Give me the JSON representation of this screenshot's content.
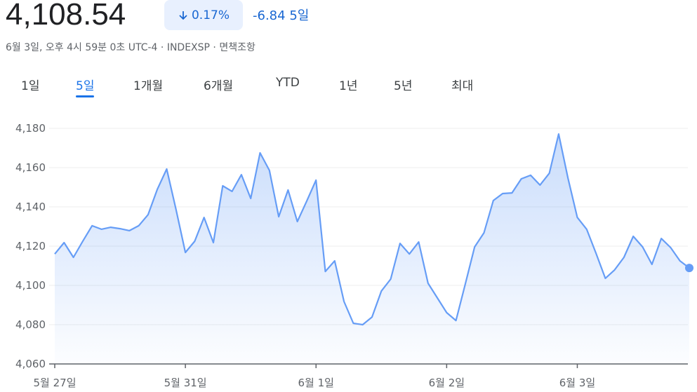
{
  "header": {
    "price": "4,108.54",
    "change_pct": "0.17%",
    "change": "-6.84",
    "period": "5일",
    "subtitle": "6월 3일, 오후 4시 59분 0초 UTC-4 · INDEXSP · 면책조항"
  },
  "tabs": {
    "items": [
      "1일",
      "5일",
      "1개월",
      "6개월",
      "YTD",
      "1년",
      "5년",
      "최대"
    ],
    "active": 1
  },
  "chart_data": {
    "type": "line",
    "color": "#669df6",
    "grid": true,
    "values": [
      4116,
      4121.8,
      4114.3,
      4122.5,
      4130.4,
      4128.6,
      4129.6,
      4128.9,
      4127.9,
      4130.4,
      4136,
      4149,
      4159.3,
      4138.6,
      4116.8,
      4122.5,
      4134.6,
      4121.8,
      4150.7,
      4147.9,
      4156.4,
      4144.3,
      4167.5,
      4158.6,
      4135,
      4148.6,
      4132.5,
      4142.9,
      4153.6,
      4107.1,
      4112.5,
      4091.8,
      4080.7,
      4080,
      4083.9,
      4097.1,
      4103.2,
      4121.4,
      4116,
      4122.1,
      4101.1,
      4093.6,
      4086.1,
      4082.1,
      4100.7,
      4119.6,
      4126.8,
      4143.2,
      4146.8,
      4147.1,
      4154.3,
      4156.1,
      4151.1,
      4157.1,
      4177.1,
      4154.6,
      4134.6,
      4128.6,
      4116.4,
      4103.6,
      4107.9,
      4114.3,
      4125,
      4119.6,
      4110.7,
      4123.9,
      4119.3,
      4112.5,
      4108.9
    ],
    "ylim": [
      4060,
      4180
    ],
    "yticks": [
      {
        "value": 4060,
        "label": "4,060"
      },
      {
        "value": 4080,
        "label": "4,080"
      },
      {
        "value": 4100,
        "label": "4,100"
      },
      {
        "value": 4120,
        "label": "4,120"
      },
      {
        "value": 4140,
        "label": "4,140"
      },
      {
        "value": 4160,
        "label": "4,160"
      },
      {
        "value": 4180,
        "label": "4,180"
      }
    ],
    "xticks": [
      {
        "value": 0,
        "label": "5월 27일"
      },
      {
        "value": 14,
        "label": "5월 31일"
      },
      {
        "value": 28,
        "label": "6월 1일"
      },
      {
        "value": 42,
        "label": "6월 2일"
      },
      {
        "value": 56,
        "label": "6월 3일"
      }
    ]
  }
}
